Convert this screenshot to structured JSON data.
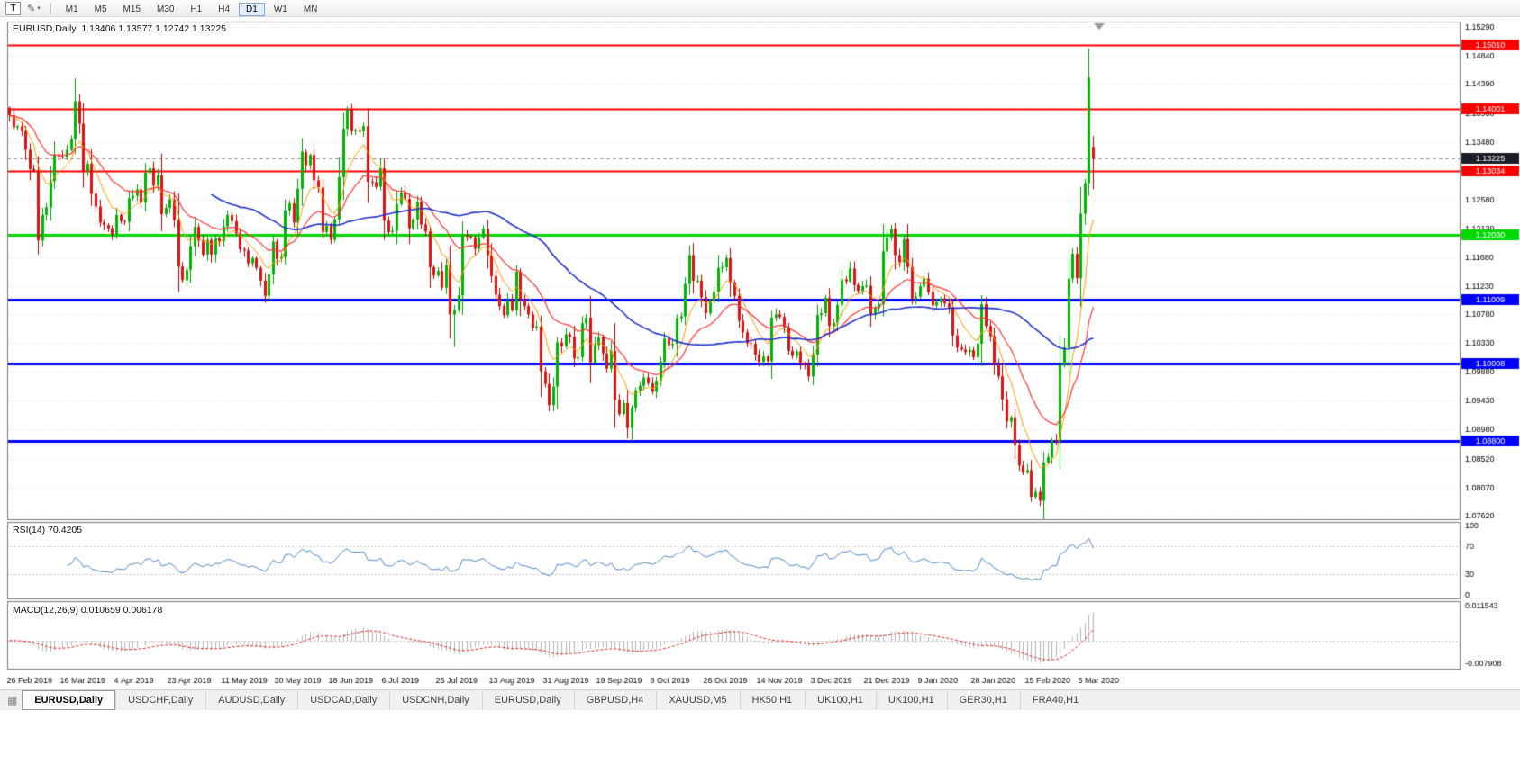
{
  "toolbar": {
    "text_tool_label": "T",
    "timeframes": [
      "M1",
      "M5",
      "M15",
      "M30",
      "H1",
      "H4",
      "D1",
      "W1",
      "MN"
    ],
    "active_timeframe": "D1"
  },
  "icons": {
    "draw_tool": "✎",
    "caret": "▾",
    "tabs": "▦"
  },
  "chart": {
    "title": "EURUSD,Daily  1.13406 1.13577 1.12742 1.13225"
  },
  "rsi": {
    "title": "RSI(14) 70.4205",
    "levels": [
      "100",
      "70",
      "30",
      "0"
    ]
  },
  "macd": {
    "title": "MACD(12,26,9) 0.010659 0.006178",
    "axis_labels": [
      "0.011543",
      "-0.007908"
    ]
  },
  "tabs": {
    "active_index": 0,
    "items": [
      "EURUSD,Daily",
      "USDCHF,Daily",
      "AUDUSD,Daily",
      "USDCAD,Daily",
      "USDCNH,Daily",
      "EURUSD,Daily",
      "GBPUSD,H4",
      "XAUUSD,M5",
      "HK50,H1",
      "UK100,H1",
      "UK100,H1",
      "GER30,H1",
      "FRA40,H1"
    ]
  },
  "chart_data": {
    "type": "candlestick",
    "symbol": "EURUSD",
    "period": "Daily",
    "last_ohlc": {
      "open": 1.13406,
      "high": 1.13577,
      "low": 1.12742,
      "close": 1.13225
    },
    "x_labels": [
      "26 Feb 2019",
      "16 Mar 2019",
      "4 Apr 2019",
      "23 Apr 2019",
      "11 May 2019",
      "30 May 2019",
      "18 Jun 2019",
      "6 Jul 2019",
      "25 Jul 2019",
      "13 Aug 2019",
      "31 Aug 2019",
      "19 Sep 2019",
      "8 Oct 2019",
      "26 Oct 2019",
      "14 Nov 2019",
      "3 Dec 2019",
      "21 Dec 2019",
      "9 Jan 2020",
      "28 Jan 2020",
      "15 Feb 2020",
      "5 Mar 2020"
    ],
    "y_axis_labels": [
      "1.15290",
      "1.14840",
      "1.14390",
      "1.13930",
      "1.13480",
      "1.13030",
      "1.12580",
      "1.12130",
      "1.11680",
      "1.11230",
      "1.10780",
      "1.10330",
      "1.09880",
      "1.09430",
      "1.08980",
      "1.08520",
      "1.08070",
      "1.07620"
    ],
    "price_range": [
      1.0757,
      1.1537
    ],
    "macd_range": [
      -0.007908,
      0.011543
    ],
    "rsi_period": 14,
    "macd_params": [
      12,
      26,
      9
    ],
    "ma_periods": [
      8,
      21,
      50
    ],
    "closes": [
      1.139,
      1.1371,
      1.1373,
      1.1365,
      1.1336,
      1.1306,
      1.1304,
      1.1194,
      1.1234,
      1.1246,
      1.1287,
      1.1328,
      1.1325,
      1.1324,
      1.1336,
      1.1353,
      1.1412,
      1.1377,
      1.1302,
      1.1314,
      1.1267,
      1.1247,
      1.1222,
      1.1218,
      1.1213,
      1.1203,
      1.1234,
      1.1224,
      1.1223,
      1.126,
      1.1264,
      1.1274,
      1.1254,
      1.13,
      1.1307,
      1.128,
      1.1296,
      1.1235,
      1.1245,
      1.1258,
      1.1226,
      1.1153,
      1.1132,
      1.1148,
      1.1185,
      1.1215,
      1.1194,
      1.1172,
      1.1195,
      1.1172,
      1.1197,
      1.1193,
      1.1216,
      1.1234,
      1.1224,
      1.1205,
      1.118,
      1.1178,
      1.1158,
      1.1166,
      1.1151,
      1.1131,
      1.1107,
      1.1141,
      1.1192,
      1.1165,
      1.1168,
      1.1241,
      1.1252,
      1.1222,
      1.1275,
      1.1333,
      1.1312,
      1.1328,
      1.1288,
      1.1277,
      1.1207,
      1.1217,
      1.1195,
      1.1227,
      1.1293,
      1.1369,
      1.1399,
      1.1365,
      1.1367,
      1.1365,
      1.1373,
      1.1286,
      1.1285,
      1.1278,
      1.1307,
      1.1225,
      1.1207,
      1.1209,
      1.1251,
      1.1269,
      1.1259,
      1.1213,
      1.1227,
      1.1254,
      1.1219,
      1.1208,
      1.1152,
      1.1139,
      1.1146,
      1.112,
      1.1155,
      1.1078,
      1.1085,
      1.1108,
      1.1203,
      1.12,
      1.1199,
      1.1181,
      1.1199,
      1.1212,
      1.1171,
      1.1138,
      1.1109,
      1.1091,
      1.1077,
      1.11,
      1.1085,
      1.1145,
      1.1101,
      1.1091,
      1.1078,
      1.1057,
      1.1059,
      1.0989,
      1.0969,
      1.0936,
      1.0965,
      1.1034,
      1.1028,
      1.1047,
      1.1043,
      1.1009,
      1.1011,
      1.1064,
      1.1073,
      1.1003,
      1.103,
      1.1042,
      1.1017,
      1.0993,
      1.1021,
      1.0944,
      1.0922,
      1.0939,
      1.09,
      1.0932,
      1.0959,
      1.0966,
      1.0979,
      1.097,
      1.0957,
      1.0974,
      1.1004,
      1.104,
      1.103,
      1.1032,
      1.1072,
      1.1075,
      1.1126,
      1.1171,
      1.1131,
      1.1131,
      1.1105,
      1.108,
      1.11,
      1.1113,
      1.1151,
      1.1152,
      1.1166,
      1.1128,
      1.1107,
      1.1068,
      1.105,
      1.1033,
      1.1032,
      1.1015,
      1.1004,
      1.1012,
      1.1005,
      1.1073,
      1.1078,
      1.1074,
      1.1058,
      1.1021,
      1.1013,
      1.102,
      1.1001,
      1.0998,
      1.0981,
      1.1015,
      1.1077,
      1.108,
      1.1104,
      1.106,
      1.1065,
      1.1093,
      1.1133,
      1.113,
      1.115,
      1.1124,
      1.1115,
      1.1122,
      1.1123,
      1.1078,
      1.1088,
      1.1094,
      1.1177,
      1.1199,
      1.1212,
      1.1171,
      1.116,
      1.1196,
      1.1152,
      1.1103,
      1.1106,
      1.1122,
      1.1134,
      1.1113,
      1.1092,
      1.1097,
      1.1103,
      1.1095,
      1.1089,
      1.1045,
      1.1026,
      1.1023,
      1.1019,
      1.1022,
      1.1011,
      1.1032,
      1.1094,
      1.106,
      1.1044,
      1.1,
      1.0981,
      1.0945,
      1.091,
      1.0917,
      1.0873,
      1.0841,
      1.083,
      1.0834,
      1.0792,
      1.08,
      1.0786,
      1.0846,
      1.0854,
      1.0881,
      1.088,
      1.0999,
      1.1026,
      1.1134,
      1.1173,
      1.1135,
      1.1236,
      1.1284,
      1.1449,
      1.1322
    ],
    "extremes": {
      "16": {
        "h": 1.1448
      },
      "108": {
        "l": 1.1027
      },
      "131": {
        "l": 1.0926
      },
      "151": {
        "l": 1.0879
      },
      "250": {
        "l": 1.0778
      },
      "262": {
        "h": 1.1495
      },
      "263": {
        "o": 1.13406,
        "h": 1.13577,
        "l": 1.12742
      }
    },
    "hlines": [
      {
        "price": 1.1501,
        "label": "1.15010",
        "color": "#ff0000",
        "width": 2
      },
      {
        "price": 1.14001,
        "label": "1.14001",
        "color": "#ff0000",
        "width": 2
      },
      {
        "price": 1.13034,
        "label": "1.13034",
        "color": "#ff0000",
        "width": 2
      },
      {
        "price": 1.1203,
        "label": "1.12030",
        "color": "#00d800",
        "width": 3
      },
      {
        "price": 1.11009,
        "label": "1.11009",
        "color": "#0000ff",
        "width": 3
      },
      {
        "price": 1.10008,
        "label": "1.10008",
        "color": "#0000ff",
        "width": 3
      },
      {
        "price": 1.088,
        "label": "1.08800",
        "color": "#0000ff",
        "width": 3
      }
    ],
    "current_price": {
      "price": 1.13225,
      "label": "1.13225",
      "color": "#1c1c28"
    },
    "colors": {
      "up": "#00b300",
      "down": "#dd1111",
      "wick_up": "#009900",
      "wick_down": "#bb0000",
      "ma_fast": "#ff9900",
      "ma_mid": "#ff3333",
      "ma_slow": "#2233cc",
      "rsi": "#4a86c8",
      "macd_hist": "#b3b3b3",
      "macd_signal": "#e02020",
      "grid": "#e2e2e2",
      "frame": "#7a7a7a",
      "axis_text": "#000000"
    }
  }
}
